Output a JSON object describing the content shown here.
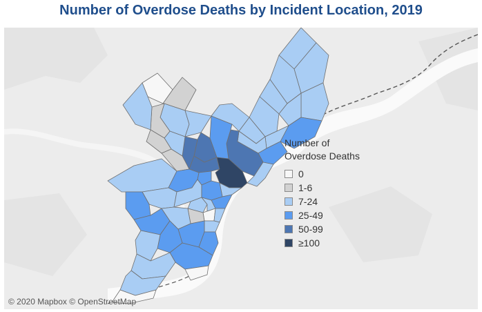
{
  "title": "Number of Overdose Deaths by Incident Location, 2019",
  "attribution": "© 2020 Mapbox © OpenStreetMap",
  "legend": {
    "title_line1": "Number of",
    "title_line2": "Overdose Deaths",
    "items": [
      {
        "label": "0",
        "color": "#f7f7f7"
      },
      {
        "label": "1-6",
        "color": "#d2d2d2"
      },
      {
        "label": "7-24",
        "color": "#a9cdf4"
      },
      {
        "label": "25-49",
        "color": "#5b9cf0"
      },
      {
        "label": "50-99",
        "color": "#4d76b2"
      },
      {
        "label": "≥100",
        "color": "#2f4565"
      }
    ]
  },
  "colors": {
    "map_background": "#ececec",
    "water": "#fafafa",
    "boundary": "#6f6f6f",
    "title": "#1f4e8c"
  }
}
